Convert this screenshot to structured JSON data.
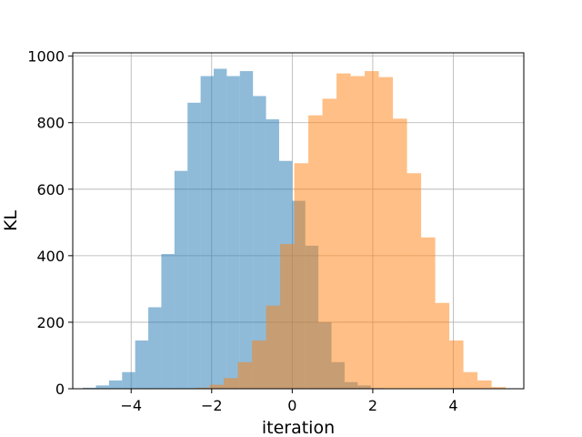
{
  "chart_data": {
    "type": "bar",
    "title": "",
    "xlabel": "iteration",
    "ylabel": "KL",
    "xlim": [
      -5.45,
      5.75
    ],
    "ylim": [
      0,
      1010
    ],
    "xticks": [
      -4,
      -2,
      0,
      2,
      4
    ],
    "yticks": [
      0,
      200,
      400,
      600,
      800,
      1000
    ],
    "grid": true,
    "legend": "none",
    "colors": {
      "series_1": "#1f77b4",
      "series_2": "#ff7f0e",
      "alpha": 0.5
    },
    "series": [
      {
        "bin_edges": [
          -5.2,
          -4.875,
          -4.55,
          -4.225,
          -3.9,
          -3.575,
          -3.25,
          -2.925,
          -2.6,
          -2.275,
          -1.95,
          -1.625,
          -1.3,
          -0.975,
          -0.65,
          -0.325,
          0.0,
          0.325,
          0.65,
          0.975,
          1.3,
          1.625,
          1.95,
          2.275
        ],
        "counts": [
          3,
          10,
          25,
          50,
          145,
          245,
          405,
          655,
          860,
          940,
          962,
          940,
          955,
          880,
          810,
          685,
          565,
          430,
          200,
          80,
          20,
          10,
          2
        ]
      },
      {
        "bin_edges": [
          -2.4,
          -2.05,
          -1.7,
          -1.35,
          -1.0,
          -0.65,
          -0.3,
          0.05,
          0.4,
          0.75,
          1.1,
          1.45,
          1.8,
          2.15,
          2.5,
          2.85,
          3.2,
          3.55,
          3.9,
          4.25,
          4.6,
          4.95,
          5.3
        ],
        "counts": [
          3,
          12,
          32,
          80,
          145,
          250,
          435,
          678,
          822,
          872,
          948,
          940,
          955,
          937,
          812,
          648,
          455,
          258,
          145,
          50,
          25,
          5
        ]
      }
    ]
  }
}
